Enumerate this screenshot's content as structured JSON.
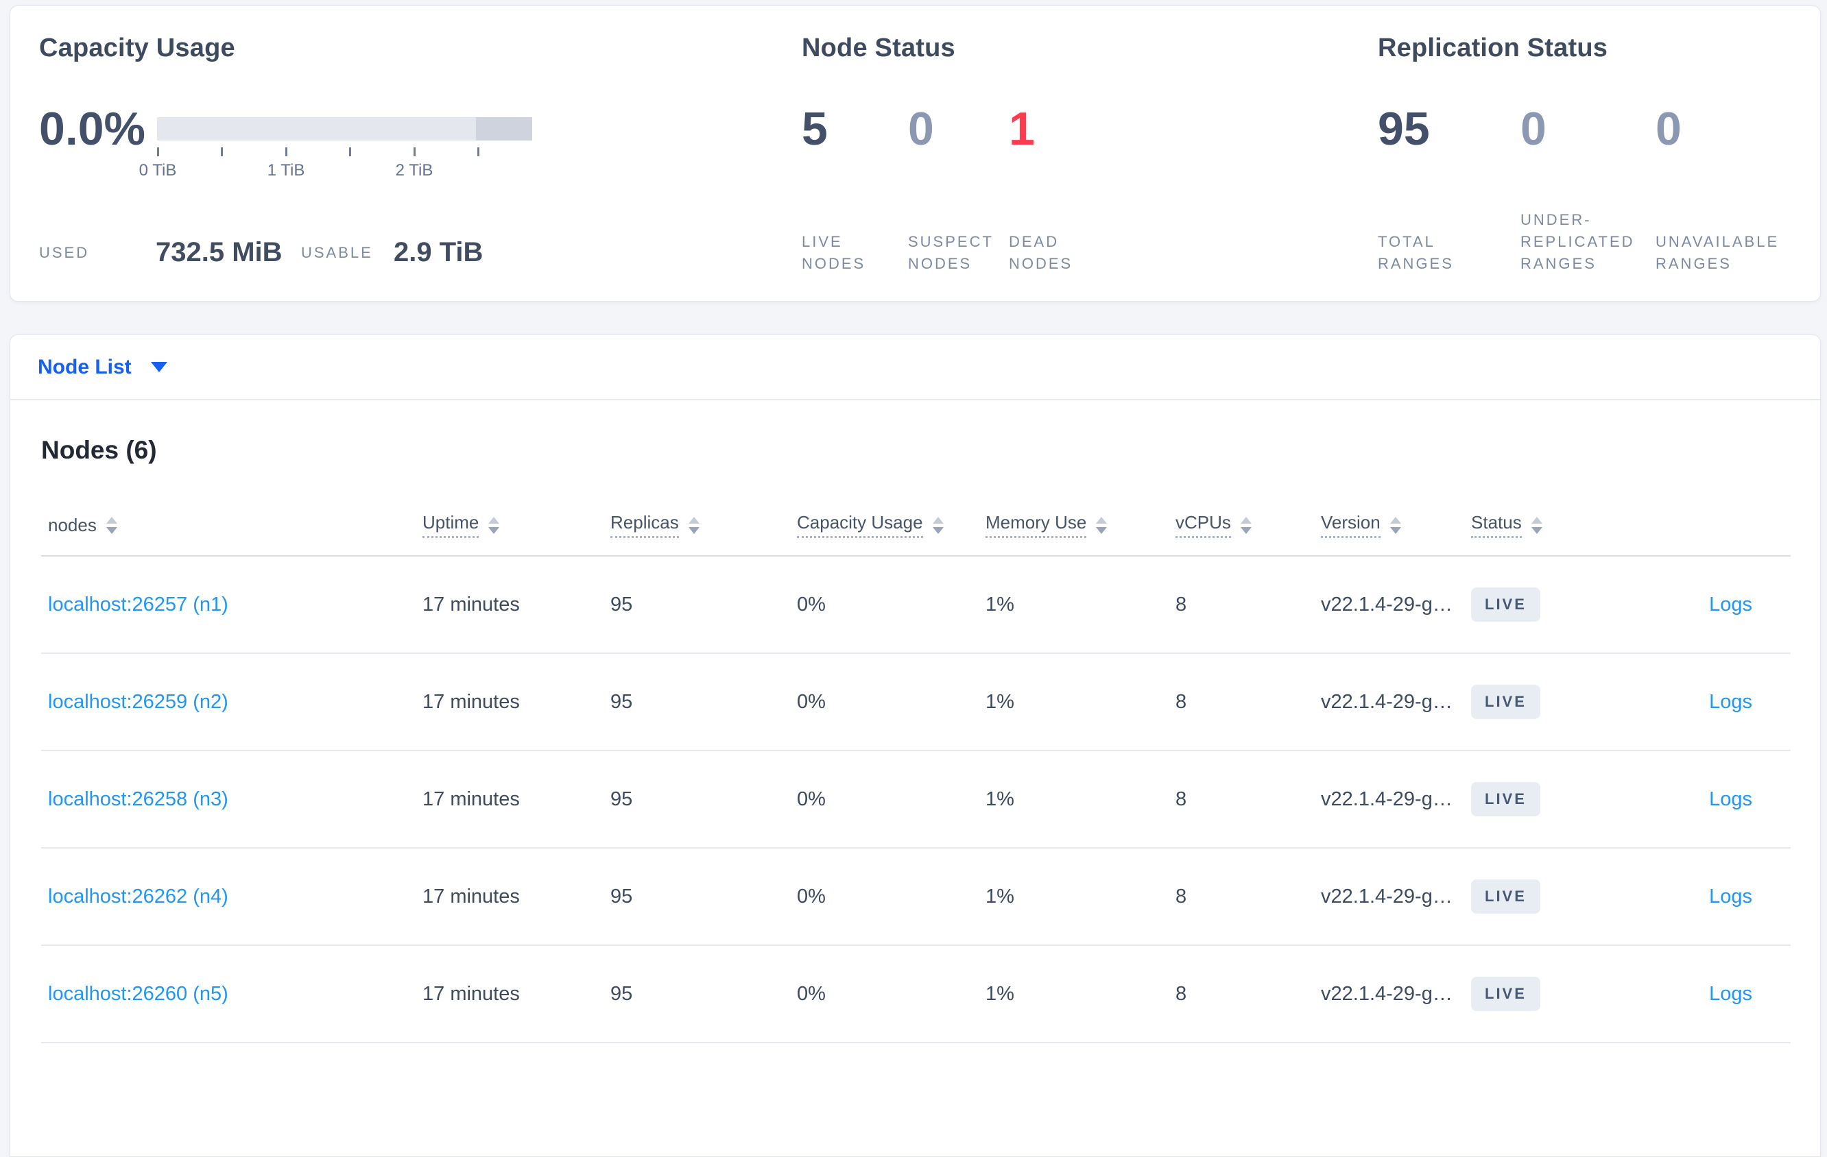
{
  "summary": {
    "capacity": {
      "title": "Capacity Usage",
      "percent": "0.0%",
      "ticks": [
        "0 TiB",
        "1 TiB",
        "2 TiB"
      ],
      "used_label": "USED",
      "used_value": "732.5 MiB",
      "usable_label": "USABLE",
      "usable_value": "2.9 TiB"
    },
    "node_status": {
      "title": "Node Status",
      "items": [
        {
          "value": "5",
          "label": "LIVE NODES",
          "style": "dark"
        },
        {
          "value": "0",
          "label": "SUSPECT NODES",
          "style": "muted"
        },
        {
          "value": "1",
          "label": "DEAD NODES",
          "style": "danger"
        }
      ]
    },
    "replication": {
      "title": "Replication Status",
      "items": [
        {
          "value": "95",
          "label": "TOTAL RANGES",
          "style": "dark"
        },
        {
          "value": "0",
          "label": "UNDER-REPLICATED RANGES",
          "style": "muted"
        },
        {
          "value": "0",
          "label": "UNAVAILABLE RANGES",
          "style": "muted"
        }
      ]
    }
  },
  "view_selector": {
    "label": "Node List"
  },
  "table": {
    "title": "Nodes (6)",
    "columns": [
      {
        "key": "node",
        "label": "nodes",
        "underline": false,
        "sortable": true
      },
      {
        "key": "uptime",
        "label": "Uptime",
        "underline": true,
        "sortable": true
      },
      {
        "key": "replicas",
        "label": "Replicas",
        "underline": true,
        "sortable": true
      },
      {
        "key": "capacity",
        "label": "Capacity Usage",
        "underline": true,
        "sortable": true
      },
      {
        "key": "memory",
        "label": "Memory Use",
        "underline": true,
        "sortable": true
      },
      {
        "key": "vcpus",
        "label": "vCPUs",
        "underline": true,
        "sortable": true
      },
      {
        "key": "version",
        "label": "Version",
        "underline": true,
        "sortable": true
      },
      {
        "key": "status",
        "label": "Status",
        "underline": true,
        "sortable": true
      },
      {
        "key": "logs",
        "label": "",
        "underline": false,
        "sortable": false
      }
    ],
    "rows": [
      {
        "node": "localhost:26257 (n1)",
        "uptime": "17 minutes",
        "replicas": "95",
        "capacity": "0%",
        "memory": "1%",
        "vcpus": "8",
        "version": "v22.1.4-29-g…",
        "status": "LIVE",
        "logs": "Logs"
      },
      {
        "node": "localhost:26259 (n2)",
        "uptime": "17 minutes",
        "replicas": "95",
        "capacity": "0%",
        "memory": "1%",
        "vcpus": "8",
        "version": "v22.1.4-29-g…",
        "status": "LIVE",
        "logs": "Logs"
      },
      {
        "node": "localhost:26258 (n3)",
        "uptime": "17 minutes",
        "replicas": "95",
        "capacity": "0%",
        "memory": "1%",
        "vcpus": "8",
        "version": "v22.1.4-29-g…",
        "status": "LIVE",
        "logs": "Logs"
      },
      {
        "node": "localhost:26262 (n4)",
        "uptime": "17 minutes",
        "replicas": "95",
        "capacity": "0%",
        "memory": "1%",
        "vcpus": "8",
        "version": "v22.1.4-29-g…",
        "status": "LIVE",
        "logs": "Logs"
      },
      {
        "node": "localhost:26260 (n5)",
        "uptime": "17 minutes",
        "replicas": "95",
        "capacity": "0%",
        "memory": "1%",
        "vcpus": "8",
        "version": "v22.1.4-29-g…",
        "status": "LIVE",
        "logs": "Logs"
      }
    ]
  },
  "colors": {
    "page-bg": "#f4f5f9",
    "title": "#3e4a5e",
    "dark-number": "#44506a",
    "muted-number": "#8c97b1",
    "danger": "#ff3b4e",
    "caps-label": "#7e89a4",
    "value": "#414c61",
    "tick-label": "#66738f",
    "tick": "#6f7d9a",
    "bar-light": "#e4e7ee",
    "bar-dark": "#ced3de",
    "link": "#2196f3",
    "selector-blue": "#1560f0",
    "table-title": "#222834",
    "header-text": "#475366",
    "row-text": "#3e4a5e",
    "badge-bg": "#e8edf4",
    "badge-text": "#475872"
  }
}
